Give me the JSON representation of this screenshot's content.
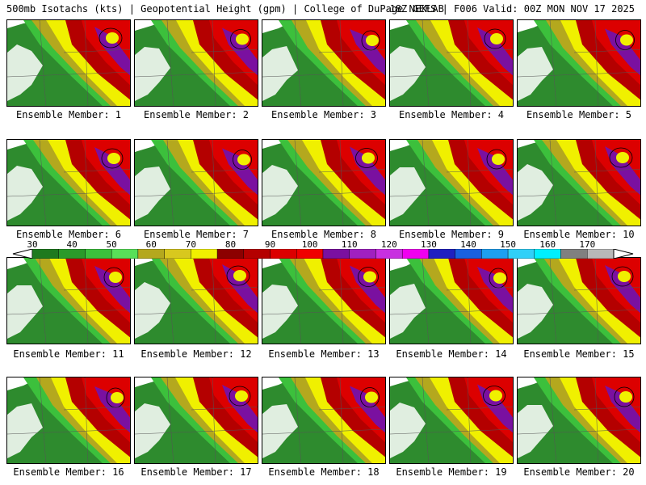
{
  "header": {
    "title_left": "500mb Isotachs (kts) | Geopotential Height (gpm) | College of DuPage NEXLAB",
    "title_right": "18Z GEFS | F006 Valid: 00Z MON NOV 17 2025"
  },
  "members": [
    {
      "label": "Ensemble Member: 1"
    },
    {
      "label": "Ensemble Member: 2"
    },
    {
      "label": "Ensemble Member: 3"
    },
    {
      "label": "Ensemble Member: 4"
    },
    {
      "label": "Ensemble Member: 5"
    },
    {
      "label": "Ensemble Member: 6"
    },
    {
      "label": "Ensemble Member: 7"
    },
    {
      "label": "Ensemble Member: 8"
    },
    {
      "label": "Ensemble Member: 9"
    },
    {
      "label": "Ensemble Member: 10"
    },
    {
      "label": "Ensemble Member: 11"
    },
    {
      "label": "Ensemble Member: 12"
    },
    {
      "label": "Ensemble Member: 13"
    },
    {
      "label": "Ensemble Member: 14"
    },
    {
      "label": "Ensemble Member: 15"
    },
    {
      "label": "Ensemble Member: 16"
    },
    {
      "label": "Ensemble Member: 17"
    },
    {
      "label": "Ensemble Member: 18"
    },
    {
      "label": "Ensemble Member: 19"
    },
    {
      "label": "Ensemble Member: 20"
    }
  ],
  "colorbar": {
    "labels": [
      "30",
      "40",
      "50",
      "60",
      "70",
      "80",
      "90",
      "100",
      "110",
      "120",
      "130",
      "140",
      "150",
      "160",
      "170"
    ],
    "colors": [
      "#1e7a1e",
      "#2a9a2a",
      "#3cc03c",
      "#58e058",
      "#b4a81e",
      "#d8c81e",
      "#f0f000",
      "#8c0000",
      "#b40000",
      "#dc0000",
      "#f00000",
      "#7a10a0",
      "#a020c0",
      "#c830e0",
      "#f000f0",
      "#2020c0",
      "#1a60e0",
      "#1ea0f0",
      "#30d0f8",
      "#00f0ff",
      "#808080",
      "#b8b8b8"
    ]
  }
}
